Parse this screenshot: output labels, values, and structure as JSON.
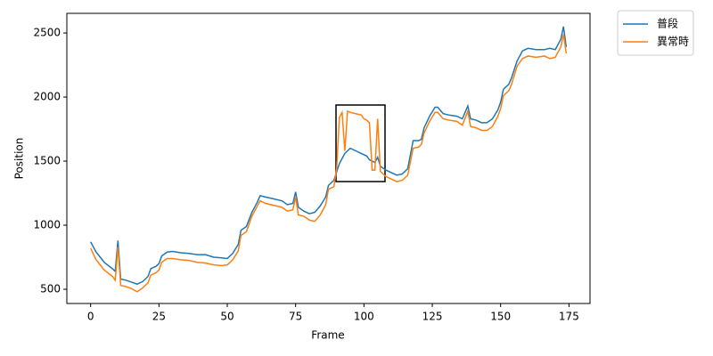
{
  "chart_data": {
    "type": "line",
    "x_label": "Frame",
    "y_label": "Position",
    "xlim": [
      -8.7,
      182.7
    ],
    "xticks": [
      0,
      25,
      50,
      75,
      100,
      125,
      150,
      175
    ],
    "ylim": [
      389,
      2653
    ],
    "yticks": [
      500,
      1000,
      1500,
      2000,
      2500
    ],
    "legend": "outside-upper-right",
    "series": [
      {
        "name": "普段",
        "color": "#1f77b4",
        "x": [
          0,
          2,
          5,
          8,
          9,
          10,
          11,
          13,
          15,
          17,
          19,
          21,
          22,
          24,
          25,
          26,
          28,
          30,
          33,
          36,
          39,
          42,
          45,
          48,
          50,
          52,
          54,
          55,
          57,
          59,
          61,
          62,
          64,
          66,
          70,
          72,
          74,
          75,
          76,
          78,
          80,
          82,
          84,
          86,
          87,
          89,
          91,
          93,
          95,
          97,
          99,
          101,
          102,
          104,
          105,
          106,
          108,
          110,
          112,
          114,
          116,
          118,
          120,
          121,
          122,
          124,
          126,
          127,
          129,
          131,
          134,
          136,
          138,
          139,
          141,
          143,
          145,
          147,
          149,
          150,
          151,
          153,
          154,
          156,
          158,
          160,
          163,
          166,
          168,
          170,
          172,
          173,
          174
        ],
        "values": [
          870,
          790,
          710,
          660,
          640,
          880,
          580,
          570,
          555,
          540,
          560,
          600,
          660,
          680,
          700,
          760,
          790,
          795,
          785,
          780,
          770,
          770,
          750,
          745,
          740,
          780,
          850,
          960,
          990,
          1100,
          1180,
          1230,
          1220,
          1210,
          1190,
          1160,
          1170,
          1260,
          1140,
          1110,
          1090,
          1100,
          1150,
          1220,
          1310,
          1350,
          1480,
          1560,
          1600,
          1580,
          1560,
          1540,
          1510,
          1490,
          1530,
          1460,
          1430,
          1410,
          1390,
          1400,
          1440,
          1660,
          1660,
          1670,
          1760,
          1850,
          1920,
          1920,
          1870,
          1860,
          1850,
          1830,
          1930,
          1830,
          1820,
          1800,
          1800,
          1830,
          1900,
          1960,
          2060,
          2100,
          2150,
          2280,
          2360,
          2380,
          2370,
          2370,
          2380,
          2370,
          2450,
          2550,
          2390
        ]
      },
      {
        "name": "異常時",
        "color": "#ff7f0e",
        "x": [
          0,
          2,
          5,
          8,
          9,
          10,
          11,
          13,
          15,
          17,
          19,
          21,
          22,
          24,
          25,
          26,
          28,
          30,
          33,
          36,
          39,
          42,
          45,
          48,
          50,
          52,
          54,
          55,
          57,
          59,
          61,
          62,
          64,
          66,
          70,
          72,
          74,
          75,
          76,
          78,
          80,
          82,
          84,
          86,
          87,
          89,
          90,
          91,
          92,
          93,
          94,
          95,
          97,
          99,
          100,
          101,
          102,
          103,
          104,
          105,
          106,
          108,
          110,
          112,
          114,
          116,
          118,
          120,
          121,
          122,
          124,
          126,
          127,
          129,
          131,
          134,
          136,
          138,
          139,
          141,
          143,
          145,
          147,
          149,
          150,
          151,
          153,
          154,
          156,
          158,
          160,
          163,
          166,
          168,
          170,
          172,
          173,
          174
        ],
        "values": [
          820,
          730,
          650,
          600,
          570,
          830,
          530,
          520,
          505,
          480,
          510,
          550,
          610,
          630,
          650,
          710,
          740,
          740,
          730,
          725,
          710,
          705,
          690,
          685,
          690,
          730,
          800,
          920,
          950,
          1070,
          1150,
          1190,
          1170,
          1160,
          1140,
          1110,
          1120,
          1220,
          1080,
          1070,
          1040,
          1030,
          1080,
          1160,
          1280,
          1300,
          1440,
          1840,
          1880,
          1580,
          1890,
          1880,
          1870,
          1860,
          1830,
          1820,
          1800,
          1430,
          1430,
          1830,
          1420,
          1380,
          1360,
          1340,
          1350,
          1390,
          1600,
          1610,
          1630,
          1720,
          1810,
          1880,
          1880,
          1830,
          1820,
          1810,
          1780,
          1890,
          1770,
          1760,
          1740,
          1740,
          1770,
          1850,
          1910,
          2010,
          2050,
          2100,
          2240,
          2300,
          2320,
          2310,
          2320,
          2300,
          2310,
          2390,
          2490,
          2340
        ]
      }
    ]
  }
}
